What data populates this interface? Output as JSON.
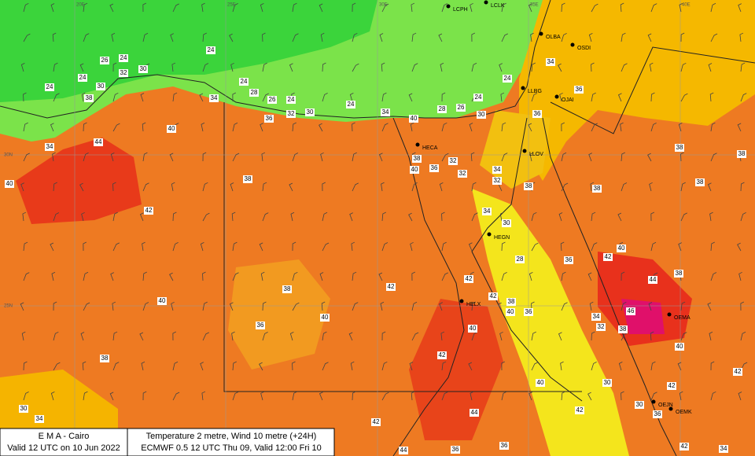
{
  "header": {
    "agency": "E M A  -  Cairo",
    "valid": "Valid 12 UTC on 10 Jun 2022",
    "field": "Temperature  2 metre, Wind  10 metre (+24H)",
    "model": "ECMWF 0.5 12 UTC Thu 09, Valid 12:00 Fri 10"
  },
  "grid_labels": [
    "20E",
    "25E",
    "30E",
    "35E",
    "40E",
    "30N",
    "25N"
  ],
  "stations": [
    "LCPH",
    "LCLK",
    "OLBA",
    "OSDI",
    "LLBG",
    "OJAI",
    "LLOV",
    "HECA",
    "HEGN",
    "HELX",
    "OEMA",
    "OEJN",
    "OEMK"
  ],
  "temperature_labels": [
    26,
    24,
    24,
    24,
    32,
    30,
    30,
    24,
    38,
    34,
    24,
    28,
    26,
    24,
    36,
    32,
    30,
    24,
    34,
    40,
    28,
    26,
    24,
    30,
    24,
    34,
    36,
    36,
    40,
    44,
    34,
    40,
    38,
    42,
    38,
    36,
    40,
    32,
    32,
    34,
    32,
    38,
    38,
    38,
    38,
    38,
    34,
    30,
    28,
    36,
    42,
    40,
    44,
    38,
    46,
    40,
    42,
    42,
    42,
    42,
    38,
    40,
    36,
    34,
    32,
    38,
    42,
    38,
    40,
    36,
    40,
    38,
    42,
    40,
    30,
    30,
    36,
    42,
    44,
    42,
    30,
    34,
    44,
    34,
    42,
    36,
    36,
    40
  ]
}
